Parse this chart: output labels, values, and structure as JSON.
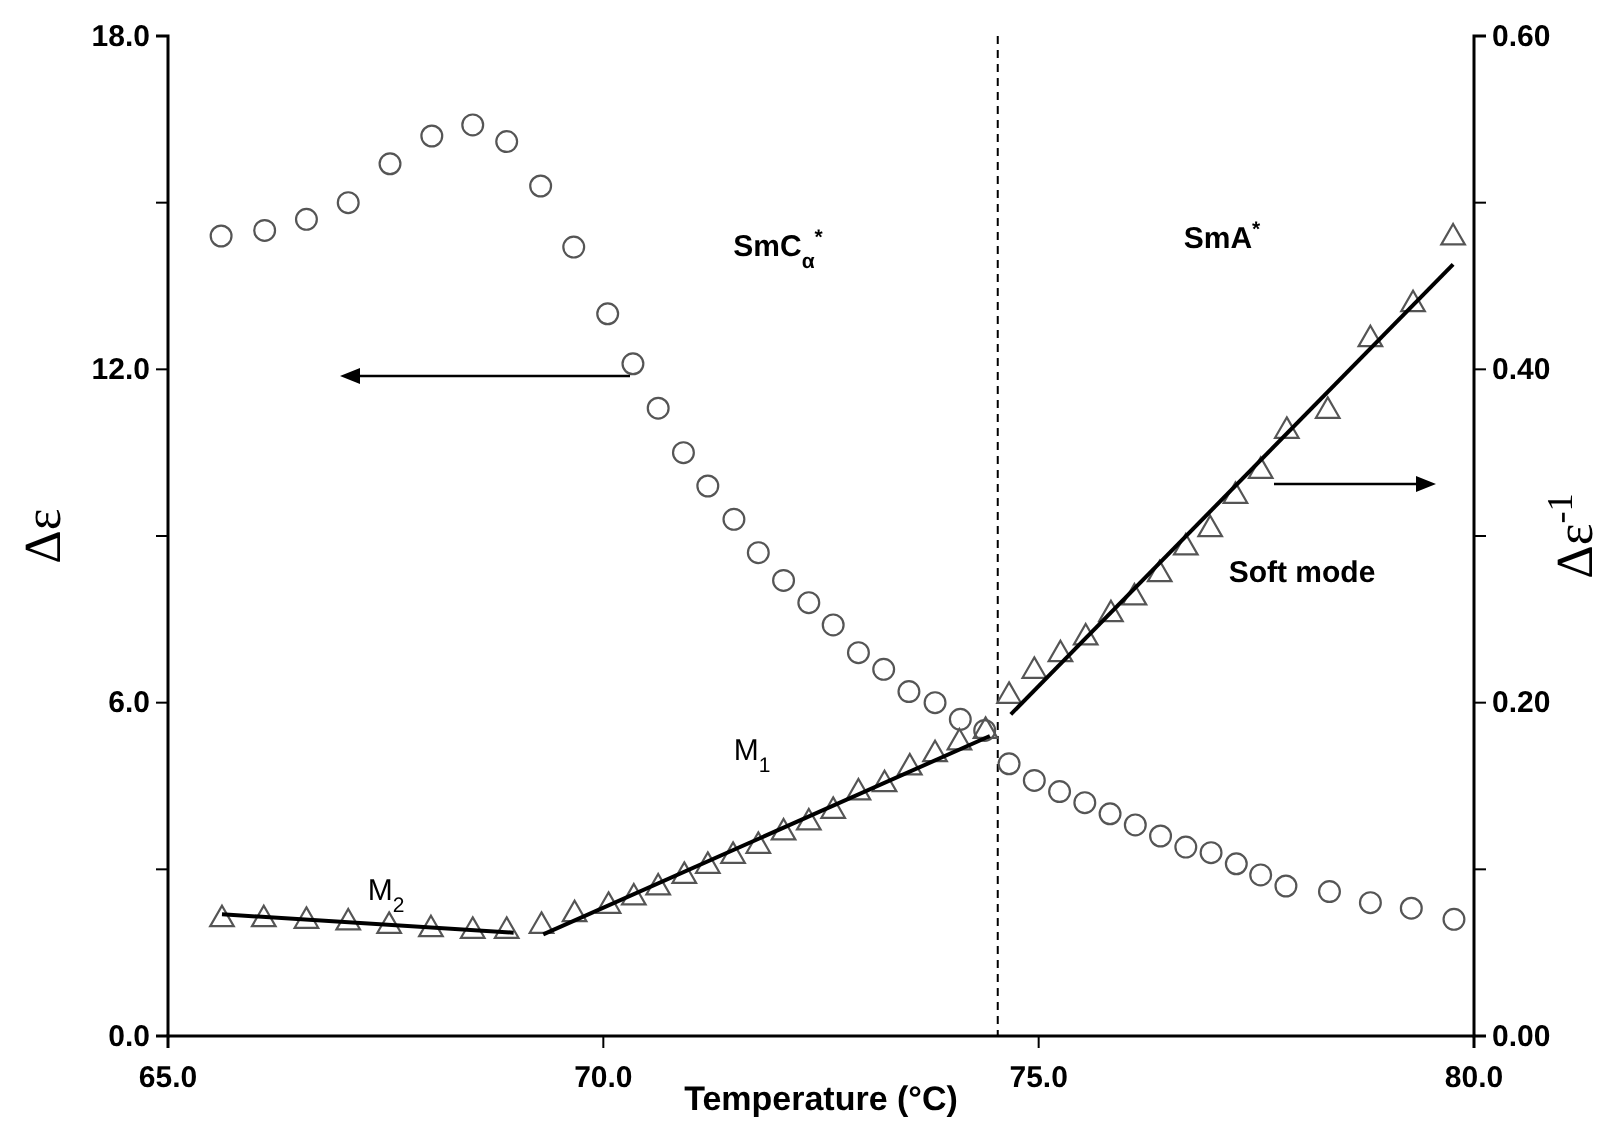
{
  "chart_data": {
    "type": "scatter",
    "xlabel": "Temperature (°C)",
    "ylabel": "Δε",
    "y2label": "Δε$^{-1}$",
    "xlim": [
      65,
      80
    ],
    "xticks": [
      {
        "value": 65,
        "label": "65.0"
      },
      {
        "value": 70,
        "label": "70.0"
      },
      {
        "value": 75,
        "label": "75.0"
      },
      {
        "value": 80,
        "label": "80.0"
      }
    ],
    "ylim": [
      0,
      18
    ],
    "yticks": [
      {
        "value": 0,
        "label": "0.0"
      },
      {
        "value": 3,
        "label": null
      },
      {
        "value": 6,
        "label": "6.0"
      },
      {
        "value": 9,
        "label": null
      },
      {
        "value": 12,
        "label": "12.0"
      },
      {
        "value": 15,
        "label": null
      },
      {
        "value": 18,
        "label": "18.0"
      }
    ],
    "y2lim": [
      0,
      0.6
    ],
    "y2ticks": [
      {
        "value": 0,
        "label": "0.00"
      },
      {
        "value": 0.1,
        "label": null
      },
      {
        "value": 0.2,
        "label": "0.20"
      },
      {
        "value": 0.3,
        "label": null
      },
      {
        "value": 0.4,
        "label": "0.40"
      },
      {
        "value": 0.5,
        "label": null
      },
      {
        "value": 0.6,
        "label": "0.60"
      }
    ],
    "grid": false,
    "series": [
      {
        "marker": "circle",
        "color": "#555555",
        "x": [
          65.61,
          66.11,
          66.59,
          67.07,
          67.55,
          68.03,
          68.5,
          68.89,
          69.28,
          69.66,
          70.05,
          70.34,
          70.63,
          70.92,
          71.2,
          71.5,
          71.78,
          72.07,
          72.36,
          72.64,
          72.93,
          73.22,
          73.51,
          73.81,
          74.1,
          74.38,
          74.66,
          74.95,
          75.24,
          75.53,
          75.82,
          76.11,
          76.4,
          76.69,
          76.98,
          77.27,
          77.55,
          77.84,
          78.34,
          78.81,
          79.28,
          79.77
        ],
        "values": [
          14.4,
          14.5,
          14.7,
          15.0,
          15.7,
          16.2,
          16.4,
          16.1,
          15.3,
          14.2,
          13.0,
          12.1,
          11.3,
          10.5,
          9.9,
          9.3,
          8.7,
          8.2,
          7.8,
          7.4,
          6.9,
          6.6,
          6.2,
          6.0,
          5.7,
          5.5,
          4.9,
          4.6,
          4.4,
          4.2,
          4.0,
          3.8,
          3.6,
          3.4,
          3.3,
          3.1,
          2.9,
          2.7,
          2.6,
          2.4,
          2.3,
          2.1
        ]
      },
      {
        "marker": "triangle",
        "axis": "y2",
        "color": "#555555",
        "x": [
          65.62,
          66.1,
          66.59,
          67.07,
          67.54,
          68.02,
          68.5,
          68.89,
          69.29,
          69.67,
          70.06,
          70.35,
          70.63,
          70.93,
          71.2,
          71.49,
          71.78,
          72.07,
          72.36,
          72.64,
          72.93,
          73.23,
          73.52,
          73.81,
          74.09,
          74.39,
          74.66,
          74.95,
          75.25,
          75.54,
          75.83,
          76.1,
          76.39,
          76.69,
          76.97,
          77.26,
          77.55,
          77.85,
          78.32,
          78.81,
          79.3,
          79.76
        ],
        "values": [
          0.07,
          0.07,
          0.069,
          0.068,
          0.066,
          0.064,
          0.063,
          0.063,
          0.066,
          0.073,
          0.078,
          0.083,
          0.089,
          0.096,
          0.102,
          0.108,
          0.114,
          0.122,
          0.128,
          0.135,
          0.146,
          0.151,
          0.161,
          0.169,
          0.176,
          0.183,
          0.204,
          0.219,
          0.229,
          0.239,
          0.253,
          0.263,
          0.277,
          0.293,
          0.304,
          0.324,
          0.339,
          0.363,
          0.375,
          0.418,
          0.439,
          0.479
        ]
      },
      {
        "type": "line",
        "axis": "y2",
        "color": "#000000",
        "line_style": "solid",
        "x": [
          65.62,
          68.97
        ],
        "values": [
          0.073,
          0.062
        ]
      },
      {
        "type": "line",
        "axis": "y2",
        "color": "#000000",
        "line_style": "solid",
        "x": [
          69.31,
          74.44
        ],
        "values": [
          0.061,
          0.18
        ]
      },
      {
        "type": "line",
        "axis": "y2",
        "color": "#000000",
        "line_style": "solid",
        "x": [
          74.68,
          79.76
        ],
        "values": [
          0.193,
          0.463
        ]
      }
    ],
    "ref_lines": [
      {
        "axis": "x",
        "value": 74.53,
        "label": null,
        "color": "#000000",
        "line_style": "dashed"
      }
    ],
    "annotations": [
      "SmC$_{α}$$^{*}$",
      "SmA$^{*}$",
      "Soft mode",
      "M$_{1}$",
      "M$_{2}$"
    ]
  }
}
